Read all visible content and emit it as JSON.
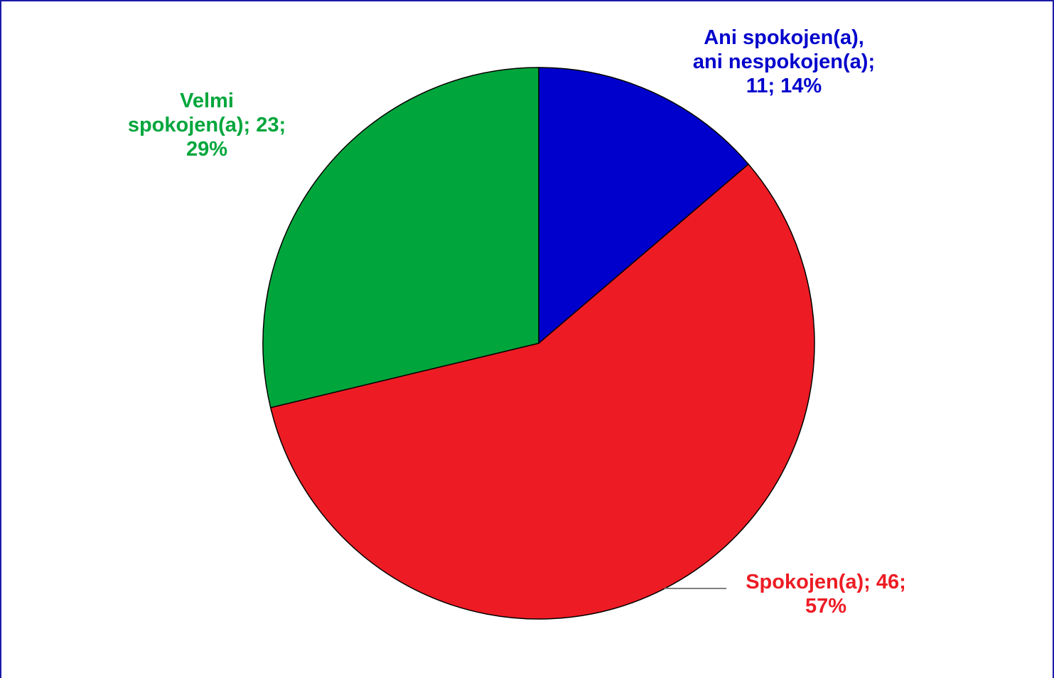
{
  "chart_data": {
    "type": "pie",
    "title": "",
    "slices": [
      {
        "category": "Ani spokojen(a), ani nespokojen(a)",
        "value": 11,
        "percent": "14%",
        "color": "#0000cc",
        "label_lines": [
          "Ani spokojen(a),",
          "ani nespokojen(a);",
          "11; 14%"
        ]
      },
      {
        "category": "Spokojen(a)",
        "value": 46,
        "percent": "57%",
        "color": "#ed1c24",
        "label_lines": [
          "Spokojen(a); 46;",
          "57%"
        ]
      },
      {
        "category": "Velmi spokojen(a)",
        "value": 23,
        "percent": "29%",
        "color": "#00a63c",
        "label_lines": [
          "Velmi",
          "spokojen(a); 23;",
          "29%"
        ]
      }
    ],
    "start": "12 o'clock",
    "direction": "clockwise",
    "slice_outline": "#000000",
    "legend": "none",
    "leader_line_color": "#808080"
  }
}
